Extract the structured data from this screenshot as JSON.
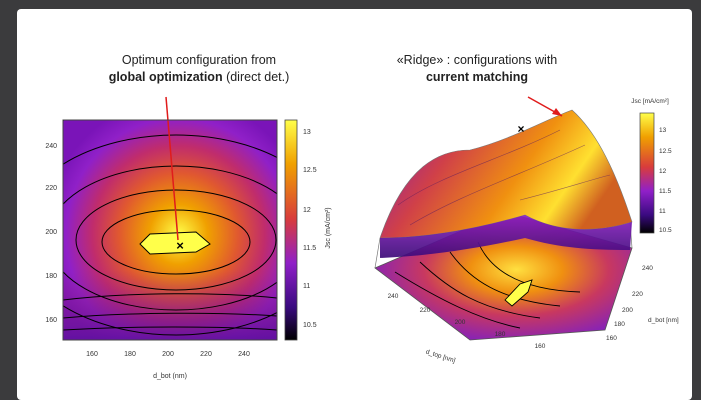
{
  "captions": {
    "left_line1": "Optimum configuration from",
    "left_bold": "global optimization",
    "left_rest": " (direct det.)",
    "right_line1": "«Ridge» : configurations with",
    "right_bold": "current matching"
  },
  "chart_data": [
    {
      "type": "heatmap",
      "title": "",
      "xlabel": "d_bot (nm)",
      "ylabel": "",
      "xlim": [
        145,
        255
      ],
      "ylim": [
        150,
        250
      ],
      "x_ticks": [
        "160",
        "180",
        "200",
        "220",
        "240"
      ],
      "y_ticks": [
        "160",
        "180",
        "200",
        "220",
        "240"
      ],
      "colorbar": {
        "label": "Jsc (mA/cm²)",
        "range": [
          10.3,
          13.2
        ],
        "ticks": [
          "13",
          "12.5",
          "12",
          "11.5",
          "11",
          "10.5"
        ]
      },
      "optimum_marker": {
        "x": 205,
        "y": 193,
        "symbol": "×"
      }
    },
    {
      "type": "surface",
      "title": "",
      "xlabel": "d_top [nm]",
      "ylabel": "d_bot [nm]",
      "x_ticks": [
        "240",
        "220",
        "200",
        "180",
        "160"
      ],
      "y_ticks": [
        "240",
        "220",
        "200",
        "180",
        "160"
      ],
      "colorbar": {
        "label": "Jsc [mA/cm²]",
        "range": [
          10.3,
          13.2
        ],
        "ticks": [
          "13",
          "12.5",
          "12",
          "11.5",
          "11",
          "10.5"
        ]
      },
      "ridge_marker": {
        "symbol": "×"
      }
    }
  ],
  "colors": {
    "low": "#2a0650",
    "mid_low": "#9020c8",
    "mid": "#d83c3c",
    "high": "#f0a000",
    "top": "#ffff4a",
    "annotation_arrow": "#e01c1c"
  }
}
